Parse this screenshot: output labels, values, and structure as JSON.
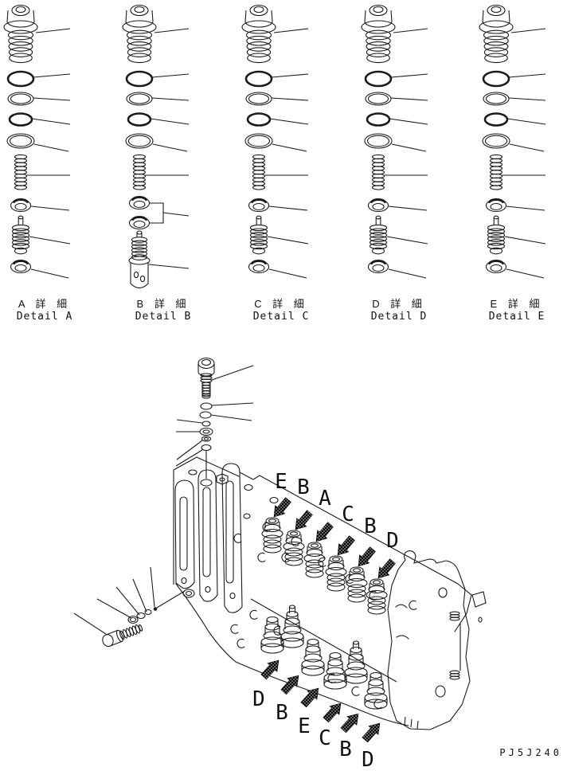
{
  "figure": {
    "background": "#ffffff",
    "line_color": "#1a1a1a",
    "part_code": "PJ5J240",
    "details": [
      {
        "id": "A",
        "label_jp": "A 詳 細",
        "label_en": "Detail A"
      },
      {
        "id": "B",
        "label_jp": "B 詳 細",
        "label_en": "Detail B"
      },
      {
        "id": "C",
        "label_jp": "C 詳 細",
        "label_en": "Detail C"
      },
      {
        "id": "D",
        "label_jp": "D 詳 細",
        "label_en": "Detail D"
      },
      {
        "id": "E",
        "label_jp": "E 詳 細",
        "label_en": "Detail E"
      }
    ],
    "assembly": {
      "top_row_labels": [
        "E",
        "B",
        "A",
        "C",
        "B",
        "D"
      ],
      "bottom_row_labels": [
        "D",
        "B",
        "E",
        "C",
        "B",
        "D"
      ]
    }
  }
}
